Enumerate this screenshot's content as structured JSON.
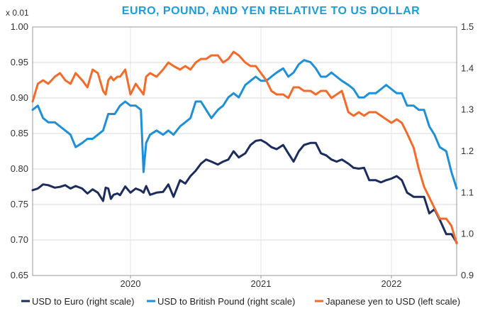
{
  "chart_data": {
    "type": "line",
    "title": "EURO, POUND, AND YEN RELATIVE TO US DOLLAR",
    "left_axis": {
      "unit_label": "x 0.01",
      "range": [
        0.65,
        1.0
      ],
      "ticks": [
        "1.00",
        "0.95",
        "0.90",
        "0.85",
        "0.80",
        "0.75",
        "0.70",
        "0.65"
      ]
    },
    "right_axis": {
      "range": [
        0.9,
        1.5
      ],
      "ticks": [
        "1.5",
        "1.4",
        "1.3",
        "1.2",
        "1.1",
        "1.0",
        "0.9"
      ]
    },
    "x_range": [
      2019.25,
      2022.5
    ],
    "x_ticks": [
      {
        "label": "2020",
        "value": 2020.0
      },
      {
        "label": "2021",
        "value": 2021.0
      },
      {
        "label": "2022",
        "value": 2022.0
      }
    ],
    "series": [
      {
        "name": "USD to Euro (right scale)",
        "axis": "right",
        "color": "#1c2c5b",
        "points": [
          [
            2019.25,
            1.106
          ],
          [
            2019.29,
            1.11
          ],
          [
            2019.33,
            1.12
          ],
          [
            2019.37,
            1.118
          ],
          [
            2019.42,
            1.112
          ],
          [
            2019.46,
            1.114
          ],
          [
            2019.5,
            1.118
          ],
          [
            2019.54,
            1.11
          ],
          [
            2019.58,
            1.116
          ],
          [
            2019.63,
            1.11
          ],
          [
            2019.67,
            1.098
          ],
          [
            2019.71,
            1.108
          ],
          [
            2019.75,
            1.1
          ],
          [
            2019.79,
            1.08
          ],
          [
            2019.81,
            1.112
          ],
          [
            2019.83,
            1.11
          ],
          [
            2019.85,
            1.085
          ],
          [
            2019.87,
            1.095
          ],
          [
            2019.9,
            1.098
          ],
          [
            2019.92,
            1.094
          ],
          [
            2019.96,
            1.115
          ],
          [
            2020.0,
            1.1
          ],
          [
            2020.04,
            1.11
          ],
          [
            2020.08,
            1.105
          ],
          [
            2020.1,
            1.1
          ],
          [
            2020.12,
            1.116
          ],
          [
            2020.15,
            1.095
          ],
          [
            2020.2,
            1.1
          ],
          [
            2020.25,
            1.102
          ],
          [
            2020.29,
            1.12
          ],
          [
            2020.33,
            1.09
          ],
          [
            2020.38,
            1.13
          ],
          [
            2020.42,
            1.122
          ],
          [
            2020.46,
            1.14
          ],
          [
            2020.5,
            1.153
          ],
          [
            2020.54,
            1.17
          ],
          [
            2020.58,
            1.18
          ],
          [
            2020.62,
            1.175
          ],
          [
            2020.67,
            1.168
          ],
          [
            2020.71,
            1.175
          ],
          [
            2020.75,
            1.18
          ],
          [
            2020.79,
            1.2
          ],
          [
            2020.83,
            1.185
          ],
          [
            2020.88,
            1.195
          ],
          [
            2020.92,
            1.215
          ],
          [
            2020.96,
            1.225
          ],
          [
            2021.0,
            1.227
          ],
          [
            2021.04,
            1.22
          ],
          [
            2021.08,
            1.21
          ],
          [
            2021.12,
            1.205
          ],
          [
            2021.17,
            1.215
          ],
          [
            2021.21,
            1.195
          ],
          [
            2021.25,
            1.175
          ],
          [
            2021.29,
            1.2
          ],
          [
            2021.33,
            1.215
          ],
          [
            2021.38,
            1.22
          ],
          [
            2021.42,
            1.22
          ],
          [
            2021.46,
            1.195
          ],
          [
            2021.5,
            1.19
          ],
          [
            2021.54,
            1.18
          ],
          [
            2021.58,
            1.175
          ],
          [
            2021.62,
            1.18
          ],
          [
            2021.67,
            1.17
          ],
          [
            2021.71,
            1.16
          ],
          [
            2021.75,
            1.158
          ],
          [
            2021.79,
            1.16
          ],
          [
            2021.83,
            1.13
          ],
          [
            2021.88,
            1.13
          ],
          [
            2021.92,
            1.125
          ],
          [
            2021.96,
            1.13
          ],
          [
            2022.0,
            1.134
          ],
          [
            2022.04,
            1.14
          ],
          [
            2022.08,
            1.13
          ],
          [
            2022.12,
            1.1
          ],
          [
            2022.17,
            1.09
          ],
          [
            2022.21,
            1.09
          ],
          [
            2022.25,
            1.09
          ],
          [
            2022.29,
            1.05
          ],
          [
            2022.33,
            1.06
          ],
          [
            2022.37,
            1.035
          ],
          [
            2022.42,
            1.0
          ],
          [
            2022.46,
            1.0
          ],
          [
            2022.5,
            0.98
          ]
        ]
      },
      {
        "name": "USD to British Pound (right scale)",
        "axis": "right",
        "color": "#1f8fd6",
        "points": [
          [
            2019.25,
            1.3
          ],
          [
            2019.29,
            1.31
          ],
          [
            2019.33,
            1.28
          ],
          [
            2019.37,
            1.27
          ],
          [
            2019.42,
            1.27
          ],
          [
            2019.46,
            1.26
          ],
          [
            2019.5,
            1.25
          ],
          [
            2019.54,
            1.24
          ],
          [
            2019.58,
            1.21
          ],
          [
            2019.63,
            1.22
          ],
          [
            2019.67,
            1.23
          ],
          [
            2019.71,
            1.23
          ],
          [
            2019.75,
            1.24
          ],
          [
            2019.79,
            1.25
          ],
          [
            2019.83,
            1.29
          ],
          [
            2019.88,
            1.29
          ],
          [
            2019.92,
            1.31
          ],
          [
            2019.96,
            1.32
          ],
          [
            2020.0,
            1.31
          ],
          [
            2020.04,
            1.31
          ],
          [
            2020.08,
            1.3
          ],
          [
            2020.1,
            1.15
          ],
          [
            2020.12,
            1.22
          ],
          [
            2020.15,
            1.24
          ],
          [
            2020.2,
            1.25
          ],
          [
            2020.25,
            1.24
          ],
          [
            2020.29,
            1.25
          ],
          [
            2020.33,
            1.24
          ],
          [
            2020.38,
            1.26
          ],
          [
            2020.42,
            1.27
          ],
          [
            2020.46,
            1.28
          ],
          [
            2020.5,
            1.32
          ],
          [
            2020.54,
            1.32
          ],
          [
            2020.58,
            1.3
          ],
          [
            2020.62,
            1.28
          ],
          [
            2020.67,
            1.3
          ],
          [
            2020.71,
            1.31
          ],
          [
            2020.75,
            1.33
          ],
          [
            2020.79,
            1.34
          ],
          [
            2020.83,
            1.33
          ],
          [
            2020.88,
            1.36
          ],
          [
            2020.92,
            1.37
          ],
          [
            2020.96,
            1.38
          ],
          [
            2021.0,
            1.37
          ],
          [
            2021.04,
            1.37
          ],
          [
            2021.08,
            1.38
          ],
          [
            2021.12,
            1.39
          ],
          [
            2021.17,
            1.4
          ],
          [
            2021.21,
            1.38
          ],
          [
            2021.25,
            1.39
          ],
          [
            2021.29,
            1.41
          ],
          [
            2021.33,
            1.42
          ],
          [
            2021.38,
            1.415
          ],
          [
            2021.42,
            1.4
          ],
          [
            2021.46,
            1.38
          ],
          [
            2021.5,
            1.38
          ],
          [
            2021.54,
            1.39
          ],
          [
            2021.58,
            1.38
          ],
          [
            2021.62,
            1.37
          ],
          [
            2021.67,
            1.36
          ],
          [
            2021.71,
            1.35
          ],
          [
            2021.75,
            1.33
          ],
          [
            2021.79,
            1.33
          ],
          [
            2021.83,
            1.34
          ],
          [
            2021.88,
            1.34
          ],
          [
            2021.92,
            1.35
          ],
          [
            2021.96,
            1.36
          ],
          [
            2022.0,
            1.35
          ],
          [
            2022.04,
            1.34
          ],
          [
            2022.08,
            1.34
          ],
          [
            2022.12,
            1.31
          ],
          [
            2022.17,
            1.31
          ],
          [
            2022.21,
            1.3
          ],
          [
            2022.25,
            1.3
          ],
          [
            2022.29,
            1.26
          ],
          [
            2022.33,
            1.24
          ],
          [
            2022.37,
            1.21
          ],
          [
            2022.42,
            1.2
          ],
          [
            2022.46,
            1.15
          ],
          [
            2022.5,
            1.11
          ]
        ]
      },
      {
        "name": "Japanese yen to USD (left scale)",
        "axis": "left",
        "color": "#f26b2a",
        "points": [
          [
            2019.25,
            0.895
          ],
          [
            2019.29,
            0.92
          ],
          [
            2019.33,
            0.925
          ],
          [
            2019.37,
            0.92
          ],
          [
            2019.42,
            0.93
          ],
          [
            2019.46,
            0.935
          ],
          [
            2019.5,
            0.925
          ],
          [
            2019.54,
            0.92
          ],
          [
            2019.58,
            0.935
          ],
          [
            2019.63,
            0.925
          ],
          [
            2019.67,
            0.915
          ],
          [
            2019.71,
            0.94
          ],
          [
            2019.75,
            0.935
          ],
          [
            2019.79,
            0.91
          ],
          [
            2019.81,
            0.905
          ],
          [
            2019.83,
            0.925
          ],
          [
            2019.85,
            0.93
          ],
          [
            2019.87,
            0.925
          ],
          [
            2019.9,
            0.93
          ],
          [
            2019.92,
            0.93
          ],
          [
            2019.96,
            0.94
          ],
          [
            2020.0,
            0.905
          ],
          [
            2020.04,
            0.92
          ],
          [
            2020.08,
            0.91
          ],
          [
            2020.1,
            0.905
          ],
          [
            2020.12,
            0.93
          ],
          [
            2020.15,
            0.935
          ],
          [
            2020.2,
            0.93
          ],
          [
            2020.25,
            0.94
          ],
          [
            2020.29,
            0.95
          ],
          [
            2020.33,
            0.945
          ],
          [
            2020.38,
            0.94
          ],
          [
            2020.42,
            0.945
          ],
          [
            2020.46,
            0.94
          ],
          [
            2020.5,
            0.95
          ],
          [
            2020.54,
            0.955
          ],
          [
            2020.58,
            0.955
          ],
          [
            2020.62,
            0.96
          ],
          [
            2020.67,
            0.96
          ],
          [
            2020.71,
            0.95
          ],
          [
            2020.75,
            0.955
          ],
          [
            2020.79,
            0.965
          ],
          [
            2020.83,
            0.96
          ],
          [
            2020.88,
            0.95
          ],
          [
            2020.92,
            0.945
          ],
          [
            2020.96,
            0.945
          ],
          [
            2021.0,
            0.935
          ],
          [
            2021.04,
            0.925
          ],
          [
            2021.08,
            0.91
          ],
          [
            2021.12,
            0.905
          ],
          [
            2021.17,
            0.905
          ],
          [
            2021.21,
            0.9
          ],
          [
            2021.25,
            0.915
          ],
          [
            2021.29,
            0.915
          ],
          [
            2021.33,
            0.91
          ],
          [
            2021.38,
            0.91
          ],
          [
            2021.42,
            0.905
          ],
          [
            2021.46,
            0.91
          ],
          [
            2021.5,
            0.91
          ],
          [
            2021.54,
            0.9
          ],
          [
            2021.58,
            0.905
          ],
          [
            2021.62,
            0.91
          ],
          [
            2021.67,
            0.88
          ],
          [
            2021.71,
            0.875
          ],
          [
            2021.75,
            0.88
          ],
          [
            2021.79,
            0.875
          ],
          [
            2021.83,
            0.88
          ],
          [
            2021.88,
            0.88
          ],
          [
            2021.92,
            0.875
          ],
          [
            2021.96,
            0.87
          ],
          [
            2022.0,
            0.865
          ],
          [
            2022.04,
            0.87
          ],
          [
            2022.08,
            0.865
          ],
          [
            2022.12,
            0.85
          ],
          [
            2022.17,
            0.83
          ],
          [
            2022.21,
            0.8
          ],
          [
            2022.25,
            0.775
          ],
          [
            2022.29,
            0.76
          ],
          [
            2022.33,
            0.745
          ],
          [
            2022.37,
            0.73
          ],
          [
            2022.42,
            0.73
          ],
          [
            2022.46,
            0.72
          ],
          [
            2022.5,
            0.695
          ]
        ]
      }
    ]
  }
}
